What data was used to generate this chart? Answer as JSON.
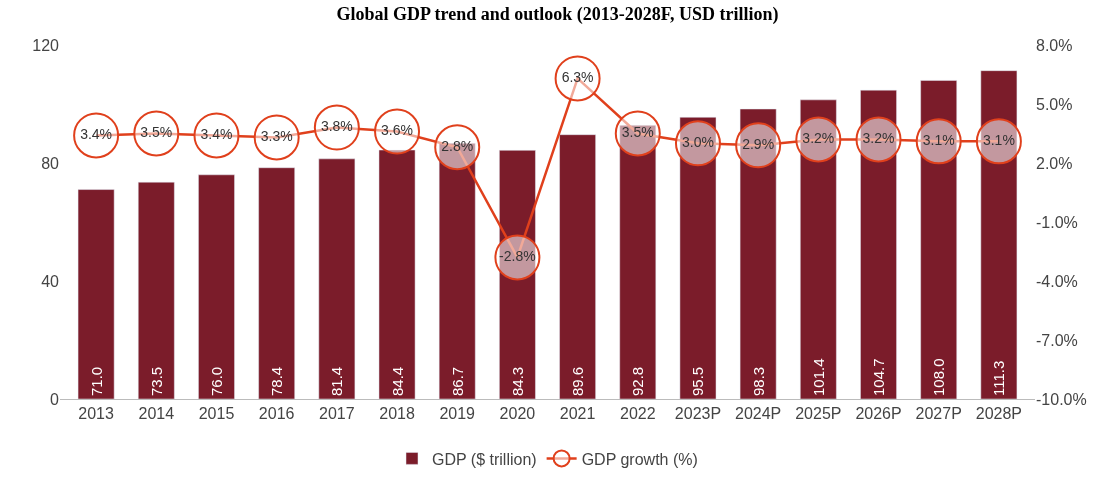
{
  "chart_data": {
    "type": "bar",
    "title": "Global GDP trend and outlook (2013-2028F, USD trillion)",
    "categories": [
      "2013",
      "2014",
      "2015",
      "2016",
      "2017",
      "2018",
      "2019",
      "2020",
      "2021",
      "2022",
      "2023P",
      "2024P",
      "2025P",
      "2026P",
      "2027P",
      "2028P"
    ],
    "series": [
      {
        "name": "GDP ($ trillion)",
        "color": "#7b1c2a",
        "values": [
          71.0,
          73.5,
          76.0,
          78.4,
          81.4,
          84.4,
          86.7,
          84.3,
          89.6,
          92.8,
          95.5,
          98.3,
          101.4,
          104.7,
          108.0,
          111.3
        ],
        "value_labels": [
          "71.0",
          "73.5",
          "76.0",
          "78.4",
          "81.4",
          "84.4",
          "86.7",
          "84.3",
          "89.6",
          "92.8",
          "95.5",
          "98.3",
          "101.4",
          "104.7",
          "108.0",
          "111.3"
        ]
      },
      {
        "name": "GDP growth (%)",
        "type": "line",
        "axis": "y2",
        "color": "#e0401c",
        "values": [
          3.4,
          3.5,
          3.4,
          3.3,
          3.8,
          3.6,
          2.8,
          -2.8,
          6.3,
          3.5,
          3.0,
          2.9,
          3.2,
          3.2,
          3.1,
          3.1
        ],
        "value_labels": [
          "3.4%",
          "3.5%",
          "3.4%",
          "3.3%",
          "3.8%",
          "3.6%",
          "2.8%",
          "-2.8%",
          "6.3%",
          "3.5%",
          "3.0%",
          "2.9%",
          "3.2%",
          "3.2%",
          "3.1%",
          "3.1%"
        ]
      }
    ],
    "ylim": [
      0,
      120
    ],
    "yticks": [
      0,
      40,
      80,
      120
    ],
    "y2lim": [
      -10,
      8
    ],
    "y2ticks": [
      {
        "value": -10,
        "label": "-10.0%"
      },
      {
        "value": -7,
        "label": "-7.0%"
      },
      {
        "value": -4,
        "label": "-4.0%"
      },
      {
        "value": -1,
        "label": "-1.0%"
      },
      {
        "value": 2,
        "label": "2.0%"
      },
      {
        "value": 5,
        "label": "5.0%"
      },
      {
        "value": 8,
        "label": "8.0%"
      }
    ],
    "marker": "circle",
    "line_style": "solid",
    "legend": "bottom"
  }
}
